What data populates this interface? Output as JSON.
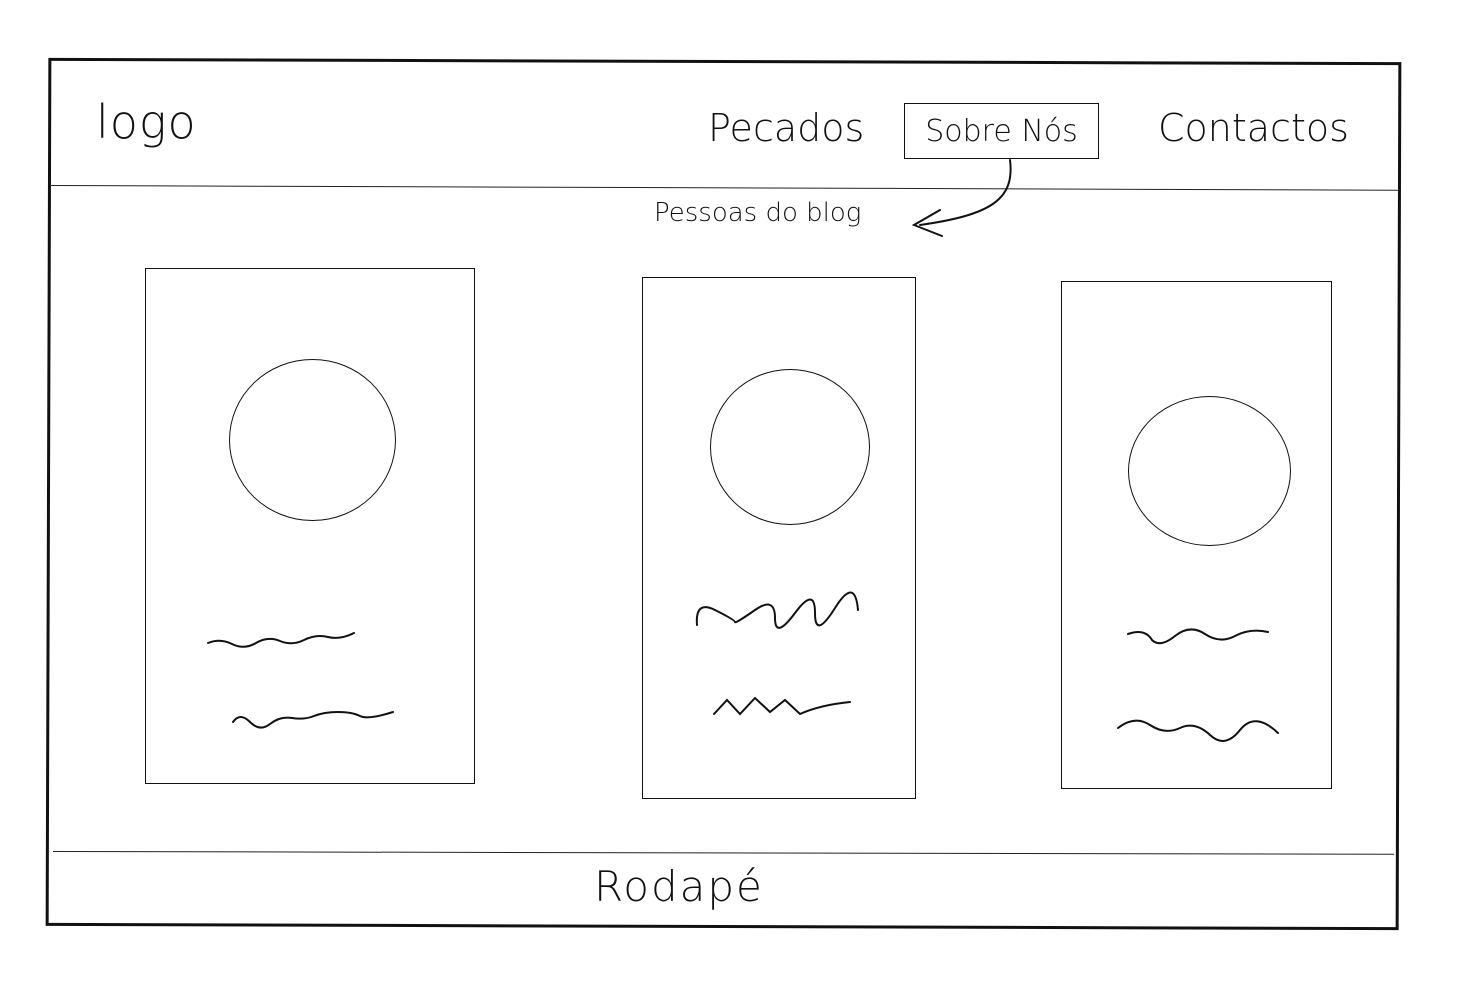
{
  "header": {
    "logo": "logo",
    "nav": {
      "pecados": "Pecados",
      "sobre_nos": "Sobre Nós",
      "contactos": "Contactos"
    }
  },
  "annotation": {
    "text": "Pessoas do blog",
    "arrow_icon": "arrow-left-icon"
  },
  "cards": [
    {
      "avatar_icon": "avatar-placeholder"
    },
    {
      "avatar_icon": "avatar-placeholder"
    },
    {
      "avatar_icon": "avatar-placeholder"
    }
  ],
  "footer": {
    "label": "Rodapé"
  }
}
